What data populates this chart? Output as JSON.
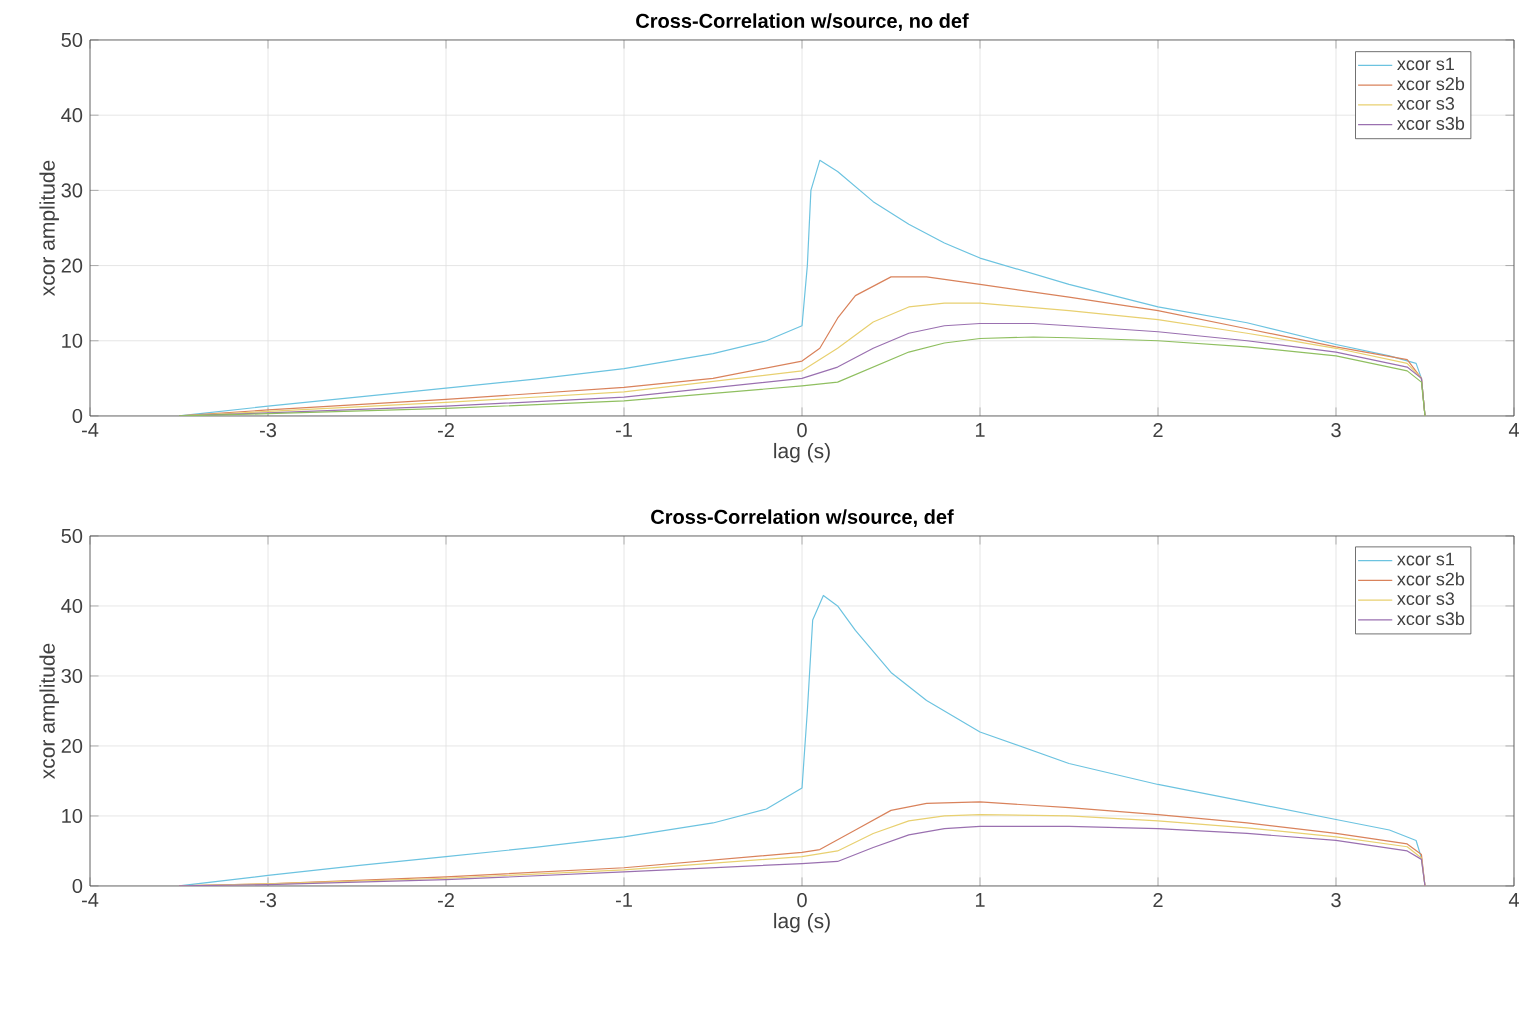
{
  "chart_data": [
    {
      "type": "line",
      "title": "Cross-Correlation w/source, no def",
      "xlabel": "lag (s)",
      "ylabel": "xcor amplitude",
      "xlim": [
        -4,
        4
      ],
      "ylim": [
        0,
        50
      ],
      "xticks": [
        -4,
        -3,
        -2,
        -1,
        0,
        1,
        2,
        3,
        4
      ],
      "yticks": [
        0,
        10,
        20,
        30,
        40,
        50
      ],
      "grid": true,
      "legend": "top right",
      "series": [
        {
          "name": "xcor s1",
          "color": "#6cc3e0",
          "x": [
            -3.5,
            -3,
            -2.5,
            -2,
            -1.5,
            -1,
            -0.5,
            -0.2,
            0,
            0.03,
            0.05,
            0.1,
            0.2,
            0.4,
            0.6,
            0.8,
            1,
            1.5,
            2,
            2.5,
            3,
            3.3,
            3.45,
            3.48,
            3.5
          ],
          "values": [
            0,
            1.3,
            2.5,
            3.7,
            4.9,
            6.3,
            8.3,
            10,
            12,
            20,
            30,
            34,
            32.5,
            28.5,
            25.5,
            23,
            21,
            17.5,
            14.5,
            12.4,
            9.5,
            8,
            7,
            5,
            0
          ]
        },
        {
          "name": "xcor s2b",
          "color": "#d9825b",
          "x": [
            -3.5,
            -3,
            -2,
            -1,
            -0.5,
            0,
            0.1,
            0.2,
            0.3,
            0.5,
            0.7,
            1,
            1.5,
            2,
            2.5,
            3,
            3.4,
            3.48,
            3.5
          ],
          "values": [
            0,
            0.8,
            2.2,
            3.8,
            5,
            7.3,
            9,
            13,
            16,
            18.5,
            18.5,
            17.5,
            15.8,
            14,
            11.6,
            9.2,
            7.5,
            5,
            0
          ]
        },
        {
          "name": "xcor s3",
          "color": "#e8d070",
          "x": [
            -3.5,
            -3,
            -2,
            -1,
            0,
            0.2,
            0.4,
            0.6,
            0.8,
            1,
            1.5,
            2,
            2.5,
            3,
            3.4,
            3.48,
            3.5
          ],
          "values": [
            0,
            0.6,
            1.8,
            3.2,
            6,
            9,
            12.5,
            14.5,
            15,
            15,
            14,
            12.8,
            11,
            9,
            7,
            5,
            0
          ]
        },
        {
          "name": "xcor s3b",
          "color": "#9a70b0",
          "x": [
            -3.5,
            -3,
            -2,
            -1,
            0,
            0.2,
            0.4,
            0.6,
            0.8,
            1,
            1.3,
            1.5,
            2,
            2.5,
            3,
            3.4,
            3.48,
            3.5
          ],
          "values": [
            0,
            0.4,
            1.3,
            2.5,
            5,
            6.5,
            9,
            11,
            12,
            12.3,
            12.3,
            12,
            11.2,
            10,
            8.5,
            6.5,
            5,
            0
          ]
        },
        {
          "color": "#8fbf60",
          "x": [
            -3.5,
            -3,
            -2,
            -1,
            0,
            0.2,
            0.4,
            0.6,
            0.8,
            1,
            1.3,
            1.5,
            2,
            2.5,
            3,
            3.4,
            3.48,
            3.5
          ],
          "values": [
            0,
            0.3,
            1,
            2,
            4,
            4.5,
            6.5,
            8.5,
            9.7,
            10.3,
            10.5,
            10.4,
            10,
            9.2,
            8,
            6,
            4.5,
            0
          ]
        }
      ]
    },
    {
      "type": "line",
      "title": "Cross-Correlation w/source, def",
      "xlabel": "lag (s)",
      "ylabel": "xcor amplitude",
      "xlim": [
        -4,
        4
      ],
      "ylim": [
        0,
        50
      ],
      "xticks": [
        -4,
        -3,
        -2,
        -1,
        0,
        1,
        2,
        3,
        4
      ],
      "yticks": [
        0,
        10,
        20,
        30,
        40,
        50
      ],
      "grid": true,
      "legend": "top right",
      "series": [
        {
          "name": "xcor s1",
          "color": "#6cc3e0",
          "x": [
            -3.5,
            -3,
            -2.5,
            -2,
            -1.5,
            -1,
            -0.5,
            -0.2,
            0,
            0.03,
            0.06,
            0.12,
            0.2,
            0.3,
            0.5,
            0.7,
            1,
            1.5,
            2,
            2.5,
            3,
            3.3,
            3.45,
            3.48,
            3.5
          ],
          "values": [
            0,
            1.5,
            2.9,
            4.2,
            5.5,
            7,
            9,
            11,
            14,
            25,
            38,
            41.5,
            40,
            36.5,
            30.5,
            26.5,
            22,
            17.5,
            14.5,
            12,
            9.5,
            8,
            6.5,
            4,
            0
          ]
        },
        {
          "name": "xcor s2b",
          "color": "#d9825b",
          "x": [
            -3.5,
            -3,
            -2,
            -1,
            0,
            0.1,
            0.3,
            0.5,
            0.7,
            1,
            1.5,
            2,
            2.5,
            3,
            3.4,
            3.48,
            3.5
          ],
          "values": [
            0,
            0.3,
            1.3,
            2.6,
            4.8,
            5.2,
            8,
            10.8,
            11.8,
            12,
            11.2,
            10.2,
            9,
            7.5,
            6,
            4.5,
            0
          ]
        },
        {
          "name": "xcor s3",
          "color": "#e8d070",
          "x": [
            -3.5,
            -3,
            -2,
            -1,
            0,
            0.2,
            0.4,
            0.6,
            0.8,
            1,
            1.5,
            2,
            2.5,
            3,
            3.4,
            3.48,
            3.5
          ],
          "values": [
            0,
            0.3,
            1.1,
            2.3,
            4.2,
            5,
            7.5,
            9.3,
            10,
            10.2,
            10,
            9.3,
            8.3,
            7,
            5.6,
            4,
            0
          ]
        },
        {
          "name": "xcor s3b",
          "color": "#9a70b0",
          "x": [
            -3.5,
            -3,
            -2,
            -1,
            0,
            0.2,
            0.4,
            0.6,
            0.8,
            1,
            1.5,
            2,
            2.5,
            3,
            3.4,
            3.48,
            3.5
          ],
          "values": [
            0,
            0.2,
            0.9,
            2,
            3.2,
            3.5,
            5.5,
            7.3,
            8.2,
            8.5,
            8.5,
            8.2,
            7.5,
            6.5,
            5,
            3.8,
            0
          ]
        }
      ]
    }
  ]
}
